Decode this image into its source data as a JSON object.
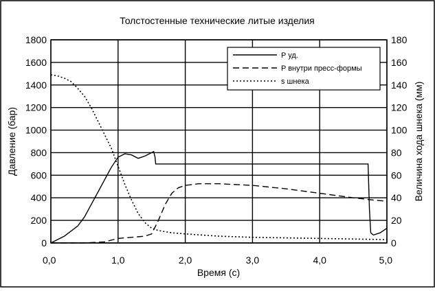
{
  "chart_data": {
    "type": "line",
    "title": "Толстостенные технические литые изделия",
    "xlabel": "Время (с)",
    "ylabel_left": "Давление (бар)",
    "ylabel_right": "Величина хода шнека (мм)",
    "xlim": [
      0,
      5
    ],
    "ylim_left": [
      0,
      1800
    ],
    "ylim_right": [
      0,
      180
    ],
    "x_ticks": [
      0,
      1,
      2,
      3,
      4,
      5
    ],
    "x_tick_labels": [
      "0,0",
      "1,0",
      "2,0",
      "3,0",
      "4,0",
      "5,0"
    ],
    "y_left_ticks": [
      0,
      200,
      400,
      600,
      800,
      1000,
      1200,
      1400,
      1600,
      1800
    ],
    "y_left_tick_labels": [
      "0",
      "200",
      "400",
      "600",
      "800",
      "1000",
      "1200",
      "1400",
      "1600",
      "1800"
    ],
    "y_right_ticks": [
      0,
      20,
      40,
      60,
      80,
      100,
      120,
      140,
      160,
      180
    ],
    "y_right_tick_labels": [
      "0",
      "20",
      "40",
      "60",
      "80",
      "100",
      "120",
      "140",
      "160",
      "180"
    ],
    "grid": true,
    "legend_position": "top-right",
    "series": [
      {
        "name": "P уд.",
        "axis": "left",
        "style": "solid",
        "x": [
          0.0,
          0.2,
          0.4,
          0.5,
          0.6,
          0.7,
          0.8,
          0.9,
          1.0,
          1.1,
          1.2,
          1.3,
          1.4,
          1.5,
          1.53,
          1.55,
          1.56,
          2.0,
          3.0,
          4.0,
          4.7,
          4.72,
          4.74,
          4.76,
          4.8,
          4.85,
          4.9,
          5.0
        ],
        "y": [
          0,
          60,
          150,
          230,
          340,
          450,
          560,
          670,
          760,
          790,
          780,
          750,
          770,
          800,
          810,
          760,
          700,
          700,
          700,
          700,
          700,
          700,
          300,
          90,
          70,
          80,
          90,
          130
        ]
      },
      {
        "name": "P внутри пресс-формы",
        "axis": "left",
        "style": "dashed",
        "x": [
          0.0,
          0.5,
          0.8,
          1.0,
          1.2,
          1.4,
          1.5,
          1.6,
          1.7,
          1.8,
          1.9,
          2.0,
          2.2,
          2.5,
          3.0,
          3.5,
          4.0,
          4.5,
          4.8,
          5.0
        ],
        "y": [
          0,
          0,
          10,
          40,
          50,
          60,
          80,
          200,
          340,
          440,
          490,
          510,
          525,
          525,
          510,
          480,
          440,
          400,
          380,
          370
        ]
      },
      {
        "name": "s шнека",
        "axis": "right",
        "style": "dotted",
        "x": [
          0.0,
          0.1,
          0.2,
          0.3,
          0.4,
          0.5,
          0.6,
          0.7,
          0.8,
          0.9,
          1.0,
          1.1,
          1.2,
          1.3,
          1.4,
          1.5,
          1.6,
          1.8,
          2.0,
          2.5,
          3.0,
          4.0,
          5.0
        ],
        "y": [
          149,
          148,
          146,
          143,
          137,
          130,
          120,
          108,
          96,
          84,
          68,
          52,
          38,
          26,
          18,
          13,
          11,
          9,
          8,
          6,
          5,
          4,
          3
        ]
      }
    ]
  }
}
